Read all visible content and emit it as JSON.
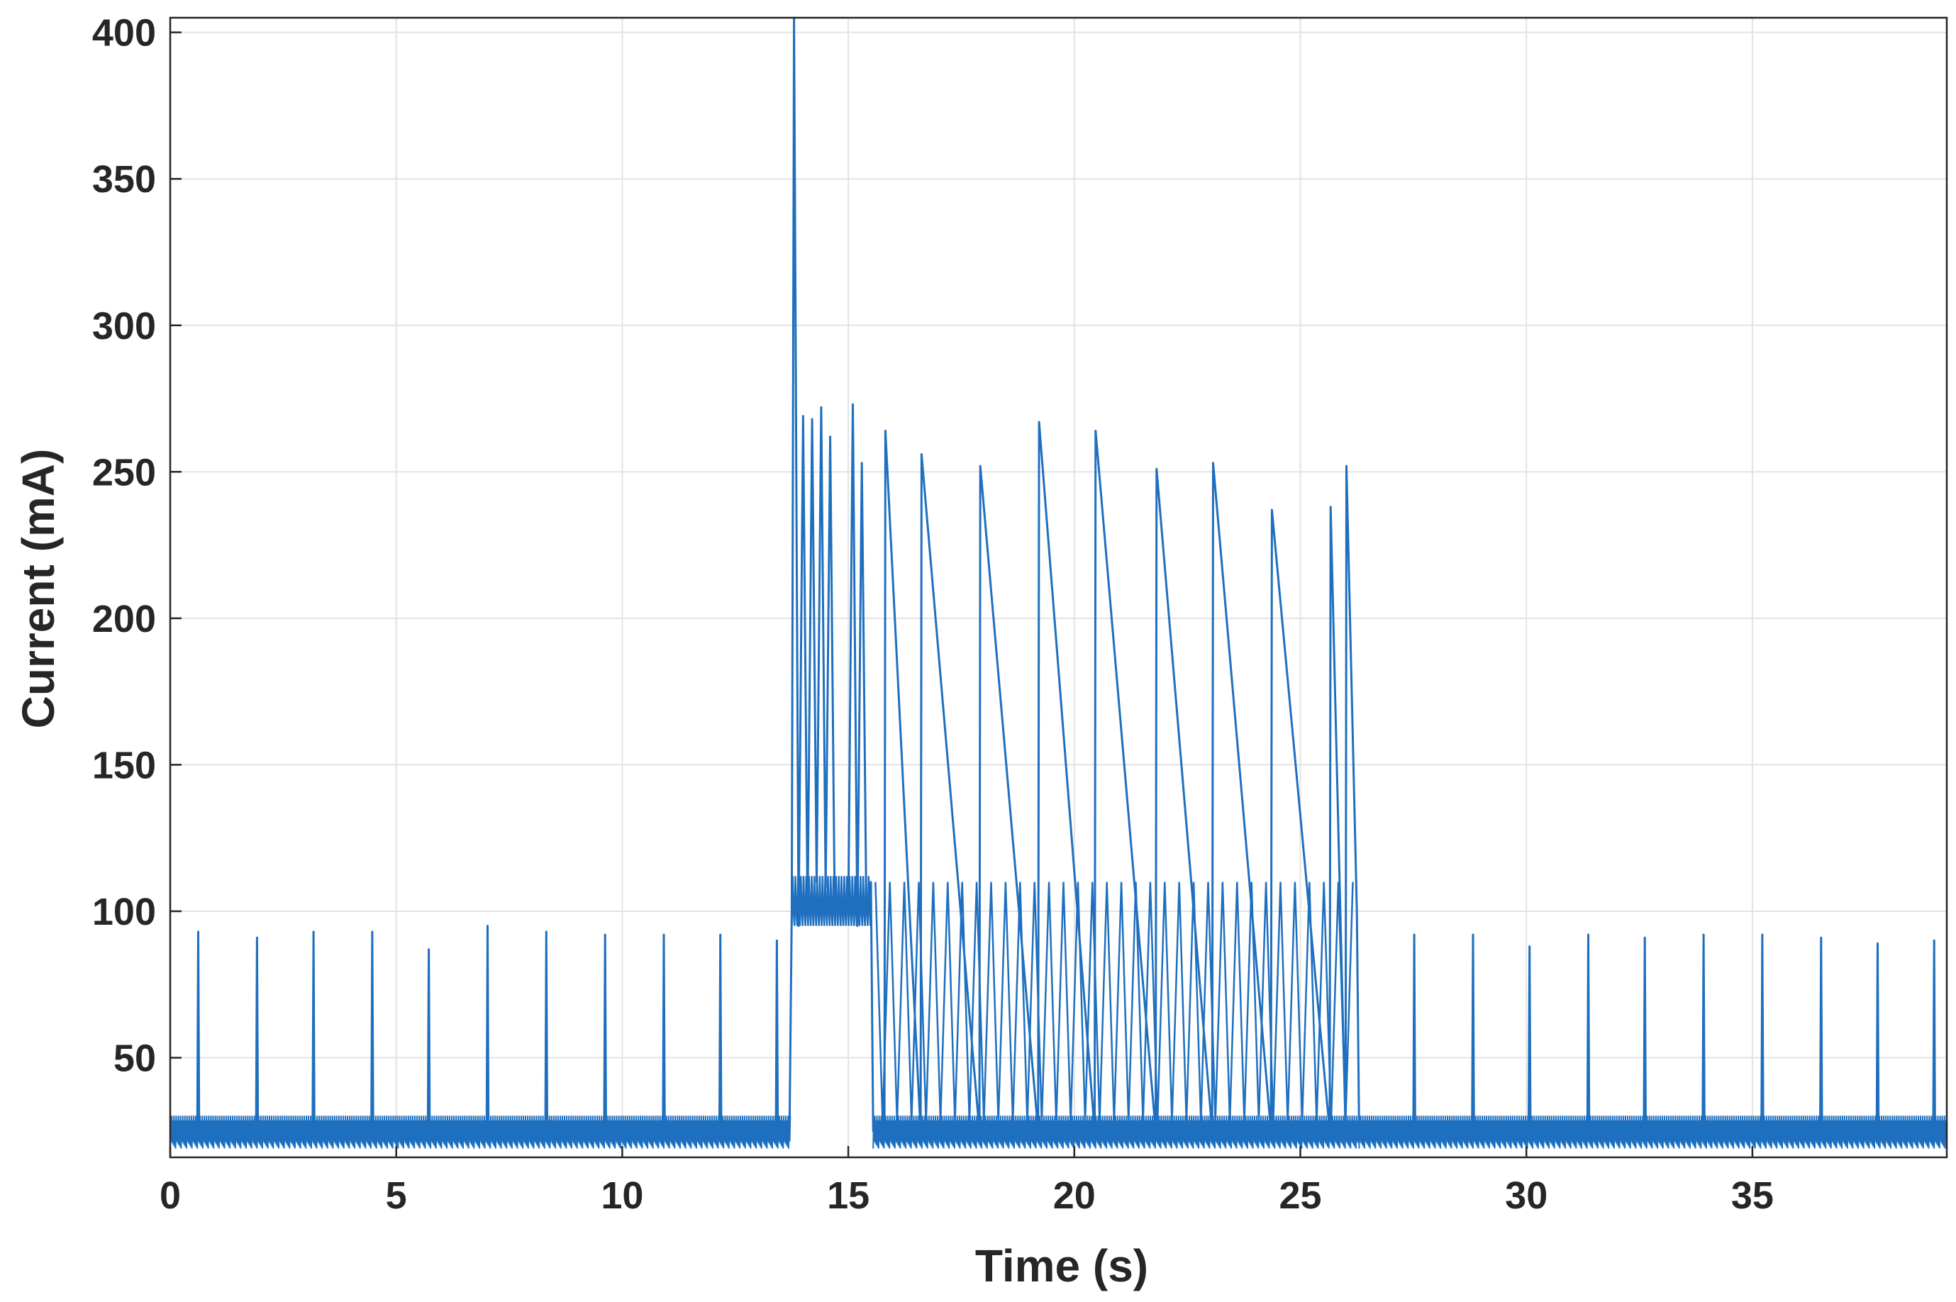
{
  "chart_data": {
    "type": "line",
    "xlabel": "Time (s)",
    "ylabel": "Current (mA)",
    "xlim": [
      0,
      39.3
    ],
    "ylim": [
      16,
      405
    ],
    "xticks": [
      0,
      5,
      10,
      15,
      20,
      25,
      30,
      35
    ],
    "yticks": [
      50,
      100,
      150,
      200,
      250,
      300,
      350,
      400
    ],
    "grid": true,
    "box": true,
    "series": [
      {
        "color": "#1f6fbf",
        "baseline_low": [
          19,
          31
        ],
        "x": [
          0,
          0.6,
          0.62,
          0.64,
          1.9,
          1.92,
          1.94,
          3.15,
          3.17,
          3.19,
          4.45,
          4.47,
          4.49,
          5.7,
          5.72,
          5.74,
          7.0,
          7.02,
          7.04,
          8.3,
          8.32,
          8.34,
          9.6,
          9.62,
          9.64,
          10.9,
          10.92,
          10.94,
          12.15,
          12.17,
          12.19,
          13.4,
          13.42,
          13.44,
          13.7,
          13.75,
          13.8,
          13.9,
          14.0,
          14.1,
          14.2,
          14.3,
          14.4,
          14.5,
          14.6,
          14.7,
          15.0,
          15.1,
          15.2,
          15.3,
          15.4,
          15.5,
          15.55,
          15.8,
          15.82,
          16.6,
          16.62,
          17.9,
          17.92,
          19.2,
          19.22,
          20.45,
          20.47,
          21.8,
          21.82,
          23.05,
          23.07,
          24.35,
          24.37,
          25.65,
          25.67,
          26.0,
          26.02,
          26.25,
          26.3,
          27.5,
          27.52,
          27.54,
          28.8,
          28.82,
          28.84,
          30.05,
          30.07,
          30.09,
          31.35,
          31.37,
          31.39,
          32.6,
          32.62,
          32.64,
          33.9,
          33.92,
          33.94,
          35.2,
          35.22,
          35.24,
          36.5,
          36.52,
          36.54,
          37.75,
          37.77,
          37.79,
          39.0,
          39.02,
          39.04,
          39.3
        ],
        "y": [
          25,
          25,
          93,
          25,
          25,
          91,
          25,
          25,
          93,
          25,
          25,
          93,
          25,
          25,
          87,
          25,
          25,
          95,
          25,
          25,
          93,
          25,
          25,
          92,
          25,
          25,
          92,
          25,
          25,
          92,
          25,
          25,
          90,
          25,
          25,
          100,
          405,
          95,
          269,
          100,
          268,
          110,
          272,
          108,
          262,
          100,
          100,
          273,
          95,
          253,
          100,
          110,
          25,
          25,
          264,
          25,
          256,
          25,
          252,
          25,
          267,
          25,
          264,
          25,
          251,
          25,
          253,
          25,
          237,
          25,
          238,
          25,
          252,
          100,
          25,
          25,
          92,
          25,
          25,
          92,
          25,
          25,
          88,
          25,
          25,
          92,
          25,
          25,
          91,
          25,
          25,
          92,
          25,
          25,
          92,
          25,
          25,
          91,
          25,
          25,
          89,
          25,
          25,
          90,
          25,
          25
        ]
      }
    ]
  }
}
